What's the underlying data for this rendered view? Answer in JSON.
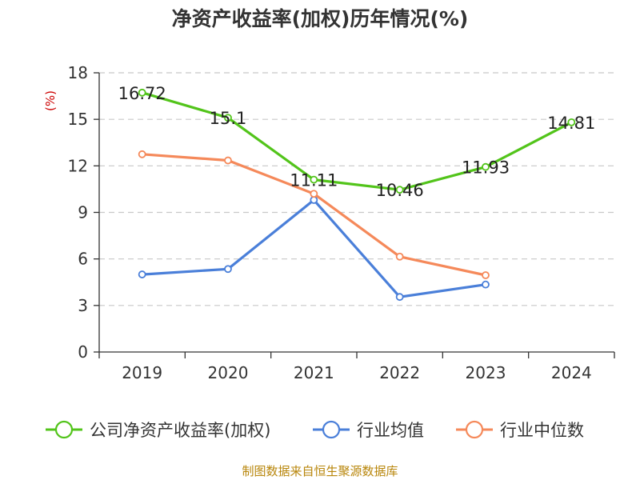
{
  "chart_data": {
    "type": "line",
    "title": "净资产收益率(加权)历年情况(%)",
    "ylabel": "(%)",
    "xlabel": "",
    "categories": [
      "2019",
      "2020",
      "2021",
      "2022",
      "2023",
      "2024"
    ],
    "ylim": [
      0,
      18
    ],
    "yticks": [
      0,
      3,
      6,
      9,
      12,
      15,
      18
    ],
    "grid": true,
    "legend_position": "bottom",
    "series": [
      {
        "name": "公司净资产收益率(加权)",
        "color": "#52c41a",
        "values": [
          16.72,
          15.1,
          11.11,
          10.46,
          11.93,
          14.81
        ],
        "labels": [
          "16.72",
          "15.1",
          "11.11",
          "10.46",
          "11.93",
          "14.81"
        ],
        "show_labels": true
      },
      {
        "name": "行业均值",
        "color": "#4a7fd9",
        "values": [
          5.0,
          5.35,
          9.8,
          3.55,
          4.35,
          null
        ],
        "show_labels": false
      },
      {
        "name": "行业中位数",
        "color": "#f5895a",
        "values": [
          12.75,
          12.35,
          10.2,
          6.15,
          4.95,
          null
        ],
        "show_labels": false
      }
    ]
  },
  "footer": {
    "source": "制图数据来自恒生聚源数据库"
  }
}
